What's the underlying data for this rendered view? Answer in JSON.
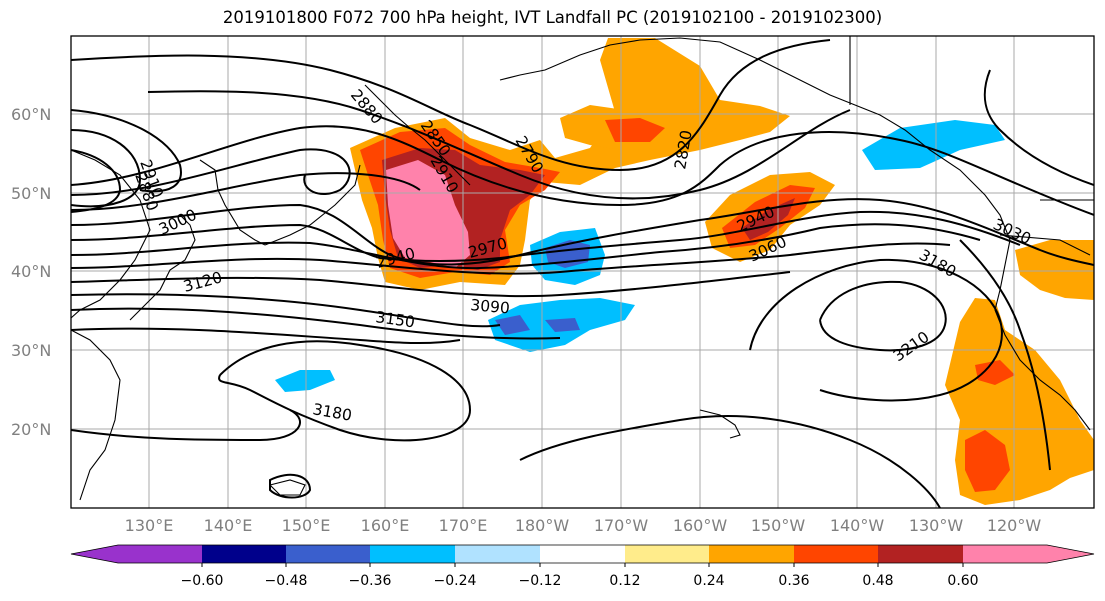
{
  "title": "2019101800 F072 700 hPa height, IVT Landfall PC (2019102100 - 2019102300)",
  "lat_labels": [
    "60°N",
    "50°N",
    "40°N",
    "30°N",
    "20°N"
  ],
  "lon_labels": [
    "130°E",
    "140°E",
    "150°E",
    "160°E",
    "170°E",
    "180°W",
    "170°W",
    "160°W",
    "150°W",
    "140°W",
    "130°W",
    "120°W"
  ],
  "contour_labels": [
    "2880",
    "2850",
    "2790",
    "2820",
    "2910",
    "2880",
    "2910",
    "3000",
    "2940",
    "2970",
    "2940",
    "3060",
    "3030",
    "3120",
    "3090",
    "3150",
    "3180",
    "3210",
    "3180"
  ],
  "colorbar": {
    "ticks": [
      "−0.60",
      "−0.48",
      "−0.36",
      "−0.24",
      "−0.12",
      "0.12",
      "0.24",
      "0.36",
      "0.48",
      "0.60"
    ],
    "colors": [
      "#9932cc",
      "#00008b",
      "#3a5fcd",
      "#00bfff",
      "#b0e2ff",
      "#ffffff",
      "#ffec8b",
      "#ffa500",
      "#ff4500",
      "#b22222",
      "#ff82ab"
    ]
  }
}
